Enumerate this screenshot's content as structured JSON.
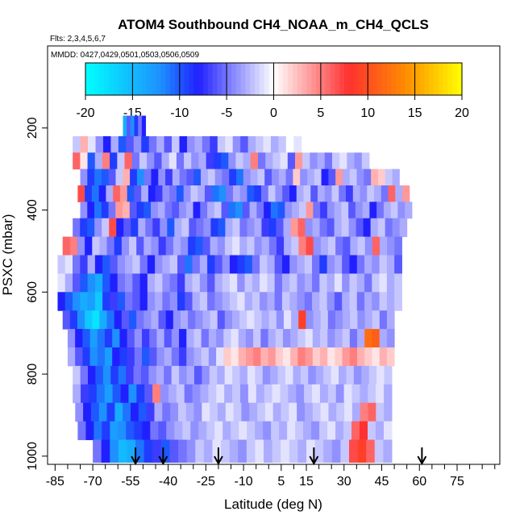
{
  "chart_data": {
    "type": "heatmap",
    "title": "ATOM4 Southbound CH4_NOAA_m_CH4_QCLS",
    "subtitle_flights": "Flts: 2,3,4,5,6,7",
    "subtitle_dates": "MMDD: 0427,0429,0501,0503,0506,0509",
    "xlabel": "Latitude (deg N)",
    "ylabel": "PSXC (mbar)",
    "xlim": [
      -88,
      92
    ],
    "ylim": [
      1020,
      0
    ],
    "x_ticks": [
      -85,
      -70,
      -55,
      -40,
      -25,
      -10,
      5,
      15,
      30,
      45,
      60,
      75
    ],
    "x_tick_labels": [
      "-85",
      "-70",
      "-55",
      "-40",
      "-25",
      "-10",
      "5",
      "15",
      "30",
      "45",
      "60",
      "75"
    ],
    "x_minor_ticks": [
      -80,
      -75,
      -65,
      -60,
      -50,
      -45,
      -35,
      -30,
      -20,
      -15,
      -5,
      0,
      10,
      20,
      25,
      35,
      40,
      50,
      55,
      65,
      70,
      80,
      85,
      90
    ],
    "y_ticks": [
      200,
      400,
      600,
      800,
      1000
    ],
    "y_tick_labels": [
      "200",
      "400",
      "600",
      "800",
      "1000"
    ],
    "colorbar": {
      "min": -20,
      "max": 20,
      "ticks": [
        -20,
        -15,
        -10,
        -5,
        0,
        5,
        10,
        15,
        20
      ],
      "tick_labels": [
        "-20",
        "-15",
        "-10",
        "-5",
        "0",
        "5",
        "10",
        "15",
        "20"
      ],
      "colors": [
        "#00ffff",
        "#1e90ff",
        "#2020ff",
        "#ffffff",
        "#ff3030",
        "#ff8c00",
        "#ffff00"
      ],
      "color_stops": [
        -20,
        -12,
        -8,
        0,
        8,
        14,
        20
      ]
    },
    "arrows_lat": [
      -53,
      -42,
      -20,
      18,
      61
    ],
    "arrow_color": "#000000",
    "grid": false,
    "layers": [
      {
        "p_low": 170,
        "p_high": 220,
        "lat_start": -58,
        "lat_end": -49,
        "values": [
          -14,
          -6,
          -12,
          -9,
          -5,
          -8
        ]
      },
      {
        "p_low": 220,
        "p_high": 260,
        "lat_start": -78,
        "lat_end": 13,
        "values": [
          -2,
          3,
          -1,
          -4,
          -8,
          -3,
          -10,
          -6,
          -4,
          -9,
          -5,
          -3,
          -6,
          -2,
          -8,
          -4,
          -3,
          -5,
          -7,
          -2,
          -1,
          -4,
          -6,
          -3,
          -2,
          -1,
          -3,
          -2,
          0,
          -1
        ]
      },
      {
        "p_low": 260,
        "p_high": 300,
        "lat_start": -78,
        "lat_end": 40,
        "values": [
          6,
          1,
          -10,
          -3,
          5,
          -9,
          -2,
          6,
          -5,
          -2,
          -4,
          -6,
          -3,
          -1,
          -5,
          -2,
          -4,
          -3,
          -7,
          -9,
          -10,
          -4,
          -2,
          -3,
          5,
          -5,
          -3,
          -2,
          -1,
          -6,
          4,
          -2,
          -4,
          -3,
          -5,
          -2,
          -1,
          -3,
          -4,
          -2
        ]
      },
      {
        "p_low": 300,
        "p_high": 340,
        "lat_start": -75,
        "lat_end": 52,
        "values": [
          -4,
          -9,
          -11,
          -10,
          -6,
          -2,
          3,
          -9,
          -12,
          -5,
          -8,
          -4,
          -7,
          -3,
          -5,
          -6,
          -10,
          -3,
          -2,
          -4,
          -5,
          -9,
          -11,
          -4,
          -3,
          -2,
          -6,
          -4,
          -3,
          -5,
          2,
          -4,
          -3,
          -2,
          -8,
          -6,
          4,
          -3,
          -2,
          -4,
          -5,
          3,
          2,
          -2,
          -3
        ]
      },
      {
        "p_low": 340,
        "p_high": 380,
        "lat_start": -76,
        "lat_end": 56,
        "values": [
          7,
          -9,
          -11,
          -8,
          -3,
          6,
          4,
          -10,
          -6,
          -3,
          -8,
          -7,
          -4,
          -5,
          -10,
          -4,
          -2,
          -3,
          -6,
          -11,
          -12,
          -5,
          -3,
          -4,
          -10,
          -9,
          -5,
          -2,
          -4,
          -6,
          -8,
          -3,
          -2,
          -6,
          -3,
          -4,
          -2,
          -5,
          -7,
          -3,
          -4,
          -2,
          -3,
          -5,
          6,
          -3,
          4
        ]
      },
      {
        "p_low": 380,
        "p_high": 420,
        "lat_start": -75,
        "lat_end": 57,
        "values": [
          -4,
          -8,
          -11,
          -9,
          -5,
          4,
          3,
          -6,
          -9,
          -10,
          -4,
          -3,
          -5,
          -6,
          -4,
          -3,
          -8,
          -5,
          -3,
          -2,
          -6,
          -11,
          -12,
          -6,
          -3,
          -5,
          -8,
          -11,
          -10,
          -4,
          -3,
          -2,
          4,
          -5,
          -7,
          -4,
          -3,
          -2,
          -6,
          -4,
          -3,
          -8,
          -5,
          -3,
          -2,
          -4,
          -3
        ]
      },
      {
        "p_low": 420,
        "p_high": 465,
        "lat_start": -78,
        "lat_end": 55,
        "values": [
          -5,
          -9,
          -10,
          -4,
          -2,
          7,
          -8,
          -6,
          -9,
          -3,
          -5,
          -7,
          -4,
          -10,
          -3,
          -2,
          -6,
          -5,
          -4,
          -9,
          -10,
          -3,
          -2,
          -5,
          -4,
          -3,
          -7,
          -9,
          -6,
          -3,
          4,
          6,
          -4,
          -3,
          -5,
          -6,
          -3,
          -2,
          -4,
          -6,
          -8,
          -3,
          -2,
          -5,
          -4,
          -3
        ]
      },
      {
        "p_low": 465,
        "p_high": 510,
        "lat_start": -82,
        "lat_end": 53,
        "values": [
          6,
          5,
          -4,
          -8,
          -2,
          -3,
          -5,
          -9,
          -4,
          -2,
          -6,
          -3,
          -4,
          -7,
          -5,
          -3,
          -4,
          -9,
          -10,
          -6,
          -3,
          -4,
          -2,
          -1,
          -3,
          -2,
          -4,
          -3,
          -5,
          -7,
          -3,
          -2,
          5,
          7,
          -4,
          -3,
          -2,
          -5,
          -6,
          -3,
          -2,
          -4,
          6,
          -3,
          -4,
          -5
        ]
      },
      {
        "p_low": 510,
        "p_high": 555,
        "lat_start": -84,
        "lat_end": 53,
        "values": [
          -2,
          -1,
          -5,
          -7,
          -3,
          -8,
          -10,
          -6,
          -4,
          -3,
          -2,
          -5,
          -8,
          -4,
          -3,
          -2,
          -6,
          -11,
          -5,
          -3,
          -9,
          -6,
          -4,
          -8,
          -9,
          -10,
          -5,
          -2,
          -3,
          -6,
          -8,
          -4,
          -3,
          -2,
          -5,
          -9,
          -4,
          -3,
          -6,
          -8,
          -5,
          -3,
          -4,
          -2,
          -3,
          -6
        ]
      },
      {
        "p_low": 555,
        "p_high": 600,
        "lat_start": -84,
        "lat_end": 53,
        "values": [
          -1,
          -3,
          -6,
          -10,
          -12,
          -14,
          -10,
          -8,
          -5,
          -4,
          -6,
          -8,
          -3,
          -2,
          -4,
          -5,
          -7,
          -3,
          -2,
          -4,
          -6,
          -3,
          -2,
          -1,
          -4,
          -2,
          -3,
          -1,
          -2,
          -5,
          -3,
          -2,
          -4,
          -3,
          -5,
          -2,
          -3,
          -1,
          -4,
          -2,
          -3,
          -5,
          -2,
          -1,
          -3,
          -2
        ]
      },
      {
        "p_low": 600,
        "p_high": 645,
        "lat_start": -84,
        "lat_end": 53,
        "values": [
          -8,
          -10,
          -12,
          -14,
          -13,
          -16,
          -9,
          -7,
          -10,
          -5,
          -6,
          -8,
          -4,
          -3,
          -5,
          -4,
          -9,
          -6,
          -3,
          -2,
          -5,
          -4,
          -3,
          -2,
          -1,
          -3,
          -2,
          -4,
          -3,
          -5,
          -2,
          -3,
          -4,
          -5,
          -3,
          -2,
          -4,
          -6,
          -3,
          -2,
          -5,
          -3,
          -4,
          -2,
          -3,
          -2
        ]
      },
      {
        "p_low": 645,
        "p_high": 690,
        "lat_start": -82,
        "lat_end": 50,
        "values": [
          -6,
          -9,
          -12,
          -16,
          -18,
          -14,
          -11,
          -8,
          -6,
          -10,
          -5,
          -4,
          -3,
          -6,
          -8,
          -4,
          -3,
          -5,
          -4,
          -3,
          -2,
          -6,
          -4,
          -3,
          -2,
          -1,
          -2,
          -3,
          -2,
          -4,
          -1,
          -3,
          9,
          -4,
          -3,
          -2,
          -5,
          -4,
          -3,
          -2,
          -4,
          -3,
          -2,
          -5,
          -3
        ]
      },
      {
        "p_low": 690,
        "p_high": 735,
        "lat_start": -80,
        "lat_end": 50,
        "values": [
          -4,
          -8,
          -10,
          -13,
          -11,
          -9,
          -12,
          -8,
          -6,
          -4,
          -7,
          -5,
          -3,
          -6,
          -4,
          -8,
          -3,
          -2,
          -5,
          -3,
          -4,
          -2,
          -1,
          -3,
          -4,
          -2,
          -5,
          -3,
          -2,
          -4,
          -3,
          -2,
          -1,
          -3,
          -2,
          -4,
          -3,
          -2,
          -5,
          -3,
          12,
          11,
          -3,
          -4
        ]
      },
      {
        "p_low": 735,
        "p_high": 780,
        "lat_start": -80,
        "lat_end": 50,
        "values": [
          -3,
          -6,
          -9,
          -12,
          -11,
          -13,
          -8,
          -9,
          -7,
          -5,
          -10,
          -6,
          -4,
          -3,
          -5,
          -7,
          -4,
          -3,
          -2,
          -4,
          -1,
          2,
          1,
          3,
          4,
          5,
          3,
          4,
          2,
          1,
          3,
          5,
          4,
          2,
          3,
          1,
          2,
          4,
          5,
          3,
          2,
          1,
          3,
          2
        ]
      },
      {
        "p_low": 780,
        "p_high": 825,
        "lat_start": -78,
        "lat_end": 49,
        "values": [
          -2,
          -5,
          -8,
          -10,
          -12,
          -9,
          -11,
          -7,
          -5,
          -6,
          -4,
          -3,
          -5,
          -2,
          -4,
          -3,
          -6,
          -4,
          -2,
          -3,
          -1,
          -2,
          -3,
          -1,
          -2,
          -4,
          -3,
          -2,
          -1,
          -3,
          -2,
          -4,
          -3,
          -2,
          -1,
          -3,
          -2,
          -4,
          -3,
          -2,
          -1,
          -2
        ]
      },
      {
        "p_low": 825,
        "p_high": 870,
        "lat_start": -78,
        "lat_end": 49,
        "values": [
          -3,
          -7,
          -9,
          -11,
          -13,
          -10,
          -8,
          -12,
          -9,
          -6,
          5,
          -4,
          -3,
          -2,
          -5,
          -4,
          -3,
          -2,
          -1,
          -3,
          -2,
          -4,
          -1,
          -3,
          -2,
          -1,
          -2,
          -3,
          -4,
          -2,
          -1,
          -3,
          -2,
          -4,
          -1,
          -2,
          -3,
          -2,
          -1,
          -3
        ]
      },
      {
        "p_low": 870,
        "p_high": 915,
        "lat_start": -77,
        "lat_end": 49,
        "values": [
          -4,
          -8,
          -10,
          -12,
          -9,
          -14,
          -11,
          -8,
          -10,
          -7,
          -3,
          -5,
          -4,
          -2,
          -3,
          -4,
          -1,
          -2,
          -3,
          -1,
          -2,
          -4,
          -3,
          -2,
          -1,
          -3,
          -2,
          -1,
          -4,
          -3,
          -2,
          -1,
          -3,
          -2,
          -1,
          -3,
          5,
          6,
          -2,
          -3
        ]
      },
      {
        "p_low": 915,
        "p_high": 960,
        "lat_start": -76,
        "lat_end": 49,
        "values": [
          -5,
          -8,
          -11,
          -9,
          -13,
          -12,
          -10,
          -9,
          -8,
          -5,
          -6,
          -4,
          -3,
          -2,
          -4,
          -3,
          -2,
          -1,
          -3,
          -2,
          -1,
          -2,
          -3,
          -4,
          -2,
          -3,
          -1,
          -2,
          -3,
          -4,
          -2,
          -1,
          -3,
          -2,
          6,
          8,
          -2,
          -3,
          -1
        ]
      },
      {
        "p_low": 960,
        "p_high": 1015,
        "lat_start": -70,
        "lat_end": 49,
        "values": [
          -5,
          -8,
          -12,
          -15,
          -14,
          -11,
          -9,
          -7,
          -10,
          -6,
          -5,
          -4,
          -2,
          -3,
          -1,
          -2,
          -3,
          -4,
          -2,
          -1,
          -3,
          -2,
          -1,
          -2,
          -3,
          -1,
          -2,
          -3,
          -4,
          -2,
          7,
          9,
          6,
          -2,
          -3
        ]
      }
    ]
  }
}
